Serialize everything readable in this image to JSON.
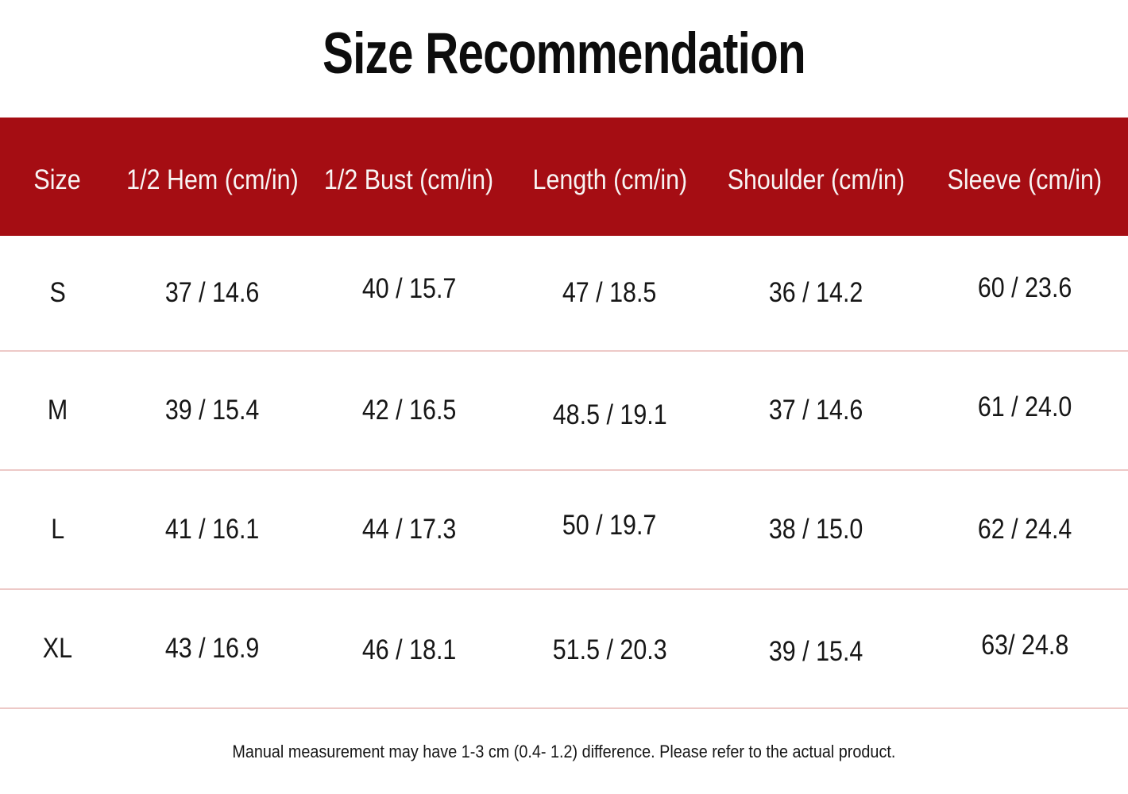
{
  "title": "Size Recommendation",
  "table": {
    "columns": [
      "Size",
      "1/2 Hem (cm/in)",
      "1/2 Bust (cm/in)",
      "Length (cm/in)",
      "Shoulder (cm/in)",
      "Sleeve (cm/in)"
    ],
    "rows": [
      {
        "size": "S",
        "hem": "37 / 14.6",
        "bust": "40 / 15.7",
        "length": "47 / 18.5",
        "shoulder": "36 / 14.2",
        "sleeve": "60 / 23.6"
      },
      {
        "size": "M",
        "hem": "39 / 15.4",
        "bust": "42 / 16.5",
        "length": "48.5 / 19.1",
        "shoulder": "37 / 14.6",
        "sleeve": "61 / 24.0"
      },
      {
        "size": "L",
        "hem": "41 / 16.1",
        "bust": "44 / 17.3",
        "length": "50 / 19.7",
        "shoulder": "38 / 15.0",
        "sleeve": "62 / 24.4"
      },
      {
        "size": "XL",
        "hem": "43 / 16.9",
        "bust": "46 / 18.1",
        "length": "51.5 / 20.3",
        "shoulder": "39 / 15.4",
        "sleeve": "63/ 24.8"
      }
    ]
  },
  "footer": {
    "note": "Manual measurement may have 1-3 cm (0.4- 1.2) difference. Please refer to the actual product."
  },
  "colors": {
    "header_bg": "#a50d13",
    "header_text": "#f8f4f3",
    "title_text": "#0d0d0d",
    "body_text": "#161616",
    "divider": "#edc9c7",
    "background": "#ffffff"
  },
  "chart_data": {
    "type": "table",
    "title": "Size Recommendation",
    "columns": [
      "Size",
      "1/2 Hem (cm/in)",
      "1/2 Bust (cm/in)",
      "Length (cm/in)",
      "Shoulder (cm/in)",
      "Sleeve (cm/in)"
    ],
    "rows": [
      [
        "S",
        "37 / 14.6",
        "40 / 15.7",
        "47 / 18.5",
        "36 / 14.2",
        "60 / 23.6"
      ],
      [
        "M",
        "39 / 15.4",
        "42 / 16.5",
        "48.5 / 19.1",
        "37 / 14.6",
        "61 / 24.0"
      ],
      [
        "L",
        "41 / 16.1",
        "44 / 17.3",
        "50 / 19.7",
        "38 / 15.0",
        "62 / 24.4"
      ],
      [
        "XL",
        "43 / 16.9",
        "46 / 18.1",
        "51.5 / 20.3",
        "39 / 15.4",
        "63/ 24.8"
      ]
    ],
    "units": "cm/in",
    "note": "Manual measurement may have 1-3 cm (0.4- 1.2) difference. Please refer to the actual product."
  }
}
